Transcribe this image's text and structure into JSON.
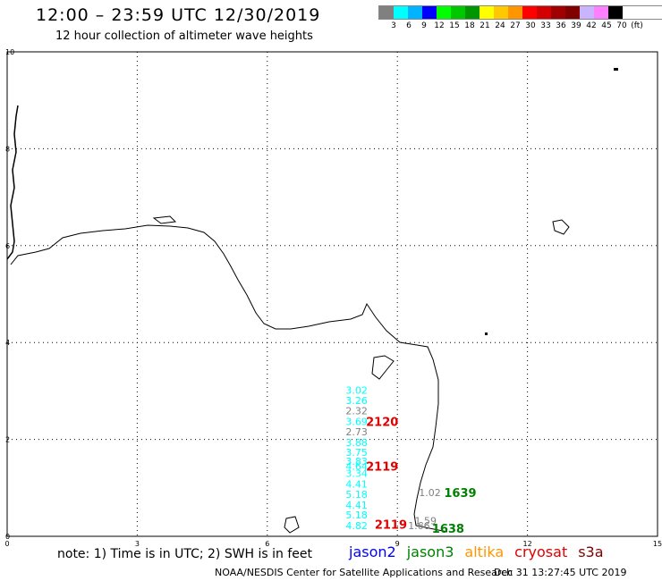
{
  "header": {
    "title": "12:00 – 23:59 UTC 12/30/2019",
    "subtitle": "12 hour collection of altimeter wave heights"
  },
  "legend": {
    "colors": [
      "#808080",
      "#00ffff",
      "#00b4ff",
      "#0000ff",
      "#00ff00",
      "#00c800",
      "#009600",
      "#ffff00",
      "#ffc800",
      "#ff9600",
      "#ff0000",
      "#d20000",
      "#a00000",
      "#800000",
      "#c8b4ff",
      "#ff80ff",
      "#000000"
    ],
    "labels": [
      "3",
      "6",
      "9",
      "12",
      "15",
      "18",
      "21",
      "24",
      "27",
      "30",
      "33",
      "36",
      "39",
      "42",
      "45",
      "70"
    ],
    "unit": "(ft)"
  },
  "axes": {
    "x_ticks": [
      "0",
      "3",
      "6",
      "9",
      "12",
      "15"
    ],
    "y_ticks": [
      "0",
      "2",
      "4",
      "6",
      "8",
      "10"
    ]
  },
  "observations": [
    {
      "value": "3.02",
      "x": 8.06,
      "y": 3.02,
      "color": "#00ffff"
    },
    {
      "value": "3.26",
      "x": 8.06,
      "y": 2.8,
      "color": "#00ffff"
    },
    {
      "value": "2.32",
      "x": 8.06,
      "y": 2.59,
      "color": "#808080"
    },
    {
      "value": "3.69",
      "x": 8.06,
      "y": 2.37,
      "color": "#00ffff"
    },
    {
      "value": "2.73",
      "x": 8.06,
      "y": 2.16,
      "color": "#808080"
    },
    {
      "value": "3.88",
      "x": 8.06,
      "y": 1.94,
      "color": "#00ffff"
    },
    {
      "value": "3.75",
      "x": 8.06,
      "y": 1.73,
      "color": "#00ffff"
    },
    {
      "value": "3.83",
      "x": 8.06,
      "y": 1.55,
      "color": "#00ffff"
    },
    {
      "value": "4.64",
      "x": 8.06,
      "y": 1.45,
      "color": "#00ffff"
    },
    {
      "value": "3.34",
      "x": 8.06,
      "y": 1.3,
      "color": "#00ffff"
    },
    {
      "value": "4.41",
      "x": 8.06,
      "y": 1.08,
      "color": "#00ffff"
    },
    {
      "value": "5.18",
      "x": 8.06,
      "y": 0.87,
      "color": "#00ffff"
    },
    {
      "value": "4.41",
      "x": 8.06,
      "y": 0.65,
      "color": "#00ffff"
    },
    {
      "value": "5.18",
      "x": 8.06,
      "y": 0.44,
      "color": "#00ffff"
    },
    {
      "value": "4.82",
      "x": 8.06,
      "y": 0.22,
      "color": "#00ffff"
    },
    {
      "value": "1.02",
      "x": 9.75,
      "y": 0.9,
      "color": "#808080"
    },
    {
      "value": "1.59",
      "x": 9.65,
      "y": 0.32,
      "color": "#808080"
    },
    {
      "value": "1.66",
      "x": 9.5,
      "y": 0.22,
      "color": "#808080"
    }
  ],
  "pass_labels": [
    {
      "text": "2120",
      "x": 8.65,
      "y": 2.37,
      "color": "#e00000"
    },
    {
      "text": "2119",
      "x": 8.65,
      "y": 1.45,
      "color": "#e00000"
    },
    {
      "text": "2119",
      "x": 8.85,
      "y": 0.25,
      "color": "#e00000"
    },
    {
      "text": "1639",
      "x": 10.45,
      "y": 0.9,
      "color": "#008000"
    },
    {
      "text": "1638",
      "x": 10.17,
      "y": 0.17,
      "color": "#008000"
    }
  ],
  "footer": {
    "note": "note:  1) Time is in UTC; 2) SWH is in feet",
    "satellites": [
      {
        "name": "jason2",
        "color": "#0000ff"
      },
      {
        "name": "jason3",
        "color": "#008000"
      },
      {
        "name": "altika",
        "color": "#ff9600"
      },
      {
        "name": "cryosat",
        "color": "#e00000"
      },
      {
        "name": "s3a",
        "color": "#800000"
      }
    ],
    "credit": "NOAA/NESDIS Center for Satellite Applications and Research",
    "timestamp": "Dec 31 13:27:45 UTC 2019"
  }
}
